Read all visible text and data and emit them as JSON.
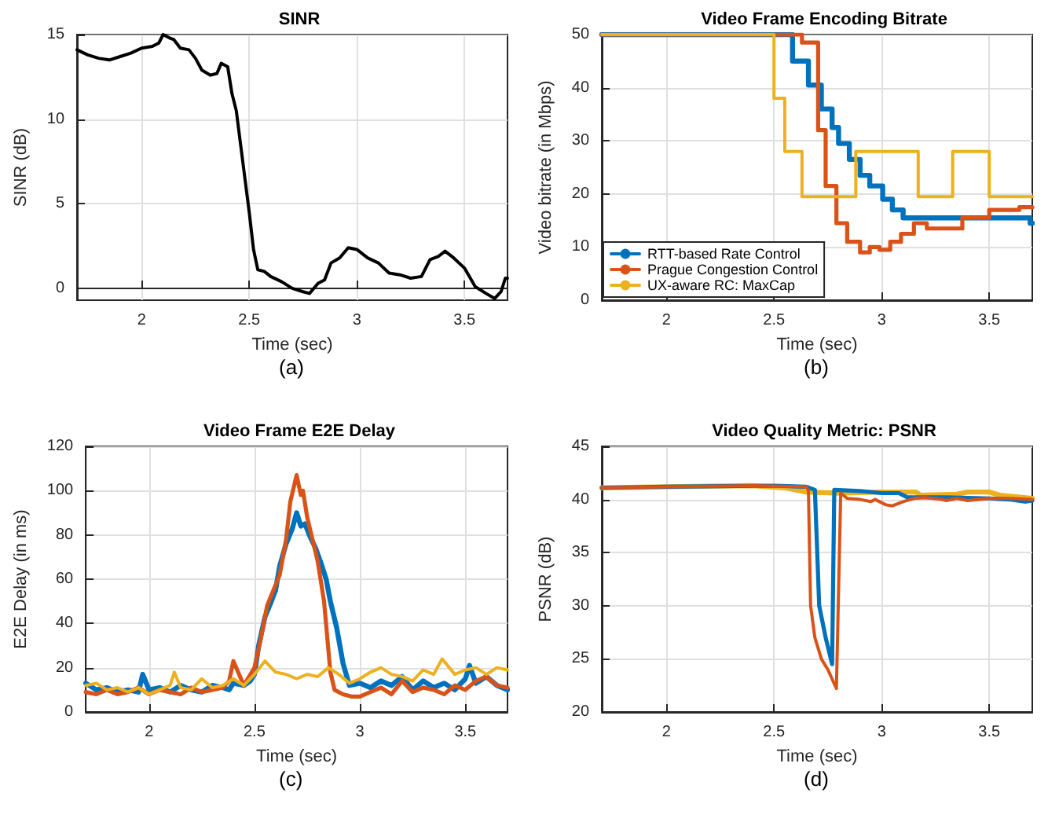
{
  "chart_data": [
    {
      "type": "line",
      "title": "SINR",
      "xlabel": "Time (sec)",
      "ylabel": "SINR (dB)",
      "annotations": [
        "(a)"
      ],
      "xlim": [
        1.7,
        3.7
      ],
      "xticks": [
        2,
        2.5,
        3,
        3.5
      ],
      "ylim": [
        -0.7,
        15
      ],
      "yticks": [
        0,
        5,
        10,
        15
      ],
      "grid": true,
      "legend": false,
      "series": [
        {
          "color": "#000000",
          "x": [
            1.7,
            1.75,
            1.8,
            1.85,
            1.9,
            1.95,
            2.0,
            2.05,
            2.08,
            2.1,
            2.13,
            2.15,
            2.18,
            2.22,
            2.25,
            2.28,
            2.32,
            2.35,
            2.37,
            2.4,
            2.42,
            2.44,
            2.46,
            2.48,
            2.5,
            2.52,
            2.54,
            2.57,
            2.6,
            2.65,
            2.7,
            2.75,
            2.78,
            2.82,
            2.85,
            2.88,
            2.92,
            2.96,
            3.0,
            3.05,
            3.1,
            3.15,
            3.2,
            3.25,
            3.3,
            3.34,
            3.38,
            3.41,
            3.45,
            3.5,
            3.55,
            3.6,
            3.64,
            3.67,
            3.69,
            3.7
          ],
          "values": [
            14.1,
            13.8,
            13.6,
            13.5,
            13.7,
            13.9,
            14.2,
            14.3,
            14.5,
            15.0,
            14.8,
            14.7,
            14.2,
            14.1,
            13.6,
            12.9,
            12.6,
            12.7,
            13.3,
            13.1,
            11.5,
            10.5,
            8.5,
            6.5,
            4.5,
            2.3,
            1.1,
            1.0,
            0.7,
            0.4,
            0.0,
            -0.2,
            -0.3,
            0.3,
            0.5,
            1.5,
            1.8,
            2.4,
            2.3,
            1.8,
            1.5,
            0.9,
            0.8,
            0.6,
            0.7,
            1.7,
            1.9,
            2.2,
            1.8,
            1.2,
            0.1,
            -0.3,
            -0.6,
            -0.2,
            0.6,
            0.6
          ]
        }
      ]
    },
    {
      "type": "step",
      "title": "Video Frame Encoding Bitrate",
      "xlabel": "Time (sec)",
      "ylabel": "Video bitrate (in Mbps)",
      "annotations": [
        "(b)"
      ],
      "xlim": [
        1.7,
        3.7
      ],
      "xticks": [
        2,
        2.5,
        3,
        3.5
      ],
      "ylim": [
        0,
        50
      ],
      "yticks": [
        0,
        10,
        20,
        30,
        40,
        50
      ],
      "grid": true,
      "legend": "bottom left",
      "series": [
        {
          "name": "RTT-based Rate Control",
          "color": "#0072bd",
          "x": [
            1.7,
            2.586,
            2.66,
            2.72,
            2.77,
            2.8,
            2.85,
            2.9,
            2.945,
            3.005,
            3.05,
            3.1,
            3.69,
            3.7
          ],
          "values": [
            50,
            45,
            40.5,
            36,
            32.5,
            29.5,
            26.5,
            23.5,
            21.5,
            19,
            17,
            15.5,
            14.5,
            14.5
          ]
        },
        {
          "name": "Prague Congestion Control",
          "color": "#d95319",
          "x": [
            1.7,
            2.63,
            2.705,
            2.74,
            2.79,
            2.84,
            2.9,
            2.945,
            2.99,
            3.04,
            3.09,
            3.15,
            3.21,
            3.375,
            3.5,
            3.64,
            3.7
          ],
          "values": [
            50,
            48.5,
            32,
            21.5,
            14.5,
            11,
            9,
            10,
            9.5,
            11,
            12.5,
            14.5,
            13.5,
            15.5,
            17,
            17.5,
            17.5
          ]
        },
        {
          "name": "UX-aware RC: MaxCap",
          "color": "#edb120",
          "x": [
            1.7,
            2.5,
            2.55,
            2.63,
            2.88,
            3.17,
            3.33,
            3.5,
            3.7
          ],
          "values": [
            50,
            38,
            28,
            19.5,
            28,
            19.5,
            28,
            19.5,
            19.5
          ]
        }
      ]
    },
    {
      "type": "line",
      "title": "Video Frame E2E Delay",
      "xlabel": "Time (sec)",
      "ylabel": "E2E Delay (in ms)",
      "annotations": [
        "(c)"
      ],
      "xlim": [
        1.7,
        3.7
      ],
      "xticks": [
        2,
        2.5,
        3,
        3.5
      ],
      "ylim": [
        0,
        120
      ],
      "yticks": [
        0,
        20,
        40,
        60,
        80,
        100,
        120
      ],
      "grid": true,
      "legend": false,
      "series": [
        {
          "color": "#0072bd",
          "x": [
            1.7,
            1.75,
            1.8,
            1.85,
            1.9,
            1.95,
            1.97,
            2.0,
            2.05,
            2.1,
            2.15,
            2.2,
            2.25,
            2.3,
            2.35,
            2.38,
            2.4,
            2.45,
            2.48,
            2.5,
            2.52,
            2.55,
            2.58,
            2.6,
            2.62,
            2.65,
            2.68,
            2.7,
            2.72,
            2.74,
            2.76,
            2.79,
            2.82,
            2.84,
            2.86,
            2.89,
            2.92,
            2.95,
            3.0,
            3.05,
            3.1,
            3.15,
            3.2,
            3.25,
            3.3,
            3.35,
            3.4,
            3.45,
            3.5,
            3.52,
            3.55,
            3.6,
            3.65,
            3.7
          ],
          "values": [
            13,
            10,
            11,
            9,
            10,
            9,
            17,
            10,
            11,
            9,
            12,
            10,
            9,
            12,
            11,
            10,
            13,
            12,
            14,
            17,
            30,
            43,
            50,
            55,
            66,
            76,
            83,
            90,
            84,
            85,
            80,
            74,
            66,
            60,
            50,
            38,
            22,
            12,
            13,
            11,
            14,
            12,
            16,
            10,
            14,
            11,
            13,
            10,
            15,
            21,
            13,
            16,
            12,
            10
          ]
        },
        {
          "color": "#d95319",
          "x": [
            1.7,
            1.75,
            1.8,
            1.85,
            1.9,
            1.95,
            2.0,
            2.05,
            2.1,
            2.15,
            2.2,
            2.25,
            2.3,
            2.35,
            2.38,
            2.4,
            2.45,
            2.5,
            2.53,
            2.56,
            2.59,
            2.62,
            2.65,
            2.67,
            2.69,
            2.7,
            2.72,
            2.73,
            2.75,
            2.77,
            2.8,
            2.83,
            2.86,
            2.88,
            2.92,
            2.96,
            3.0,
            3.05,
            3.1,
            3.15,
            3.2,
            3.25,
            3.3,
            3.35,
            3.4,
            3.45,
            3.5,
            3.55,
            3.6,
            3.65,
            3.7
          ],
          "values": [
            9,
            8,
            10,
            8,
            9,
            11,
            8,
            10,
            9,
            8,
            11,
            9,
            10,
            11,
            14,
            23,
            12,
            20,
            33,
            48,
            55,
            62,
            78,
            95,
            103,
            107,
            98,
            100,
            88,
            80,
            68,
            50,
            18,
            10,
            8,
            7,
            7,
            9,
            11,
            8,
            14,
            9,
            11,
            10,
            8,
            12,
            10,
            14,
            16,
            12,
            11
          ]
        },
        {
          "color": "#edb120",
          "x": [
            1.7,
            1.75,
            1.8,
            1.85,
            1.9,
            1.95,
            2.0,
            2.05,
            2.1,
            2.12,
            2.15,
            2.2,
            2.25,
            2.3,
            2.35,
            2.4,
            2.45,
            2.5,
            2.55,
            2.6,
            2.65,
            2.7,
            2.75,
            2.8,
            2.85,
            2.9,
            2.95,
            3.0,
            3.05,
            3.1,
            3.15,
            3.2,
            3.25,
            3.3,
            3.35,
            3.39,
            3.45,
            3.5,
            3.55,
            3.6,
            3.65,
            3.7
          ],
          "values": [
            12,
            13,
            10,
            11,
            9,
            11,
            8,
            10,
            12,
            18,
            11,
            10,
            15,
            11,
            12,
            15,
            12,
            17,
            23,
            18,
            17,
            15,
            17,
            16,
            20,
            17,
            13,
            15,
            18,
            20,
            17,
            16,
            14,
            19,
            17,
            24,
            17,
            19,
            20,
            17,
            20,
            19
          ]
        }
      ]
    },
    {
      "type": "line",
      "title": "Video Quality Metric: PSNR",
      "xlabel": "Time (sec)",
      "ylabel": "PSNR (dB)",
      "annotations": [
        "(d)"
      ],
      "xlim": [
        1.7,
        3.7
      ],
      "xticks": [
        2,
        2.5,
        3,
        3.5
      ],
      "ylim": [
        20,
        45
      ],
      "yticks": [
        20,
        25,
        30,
        35,
        40,
        45
      ],
      "grid": true,
      "legend": false,
      "series": [
        {
          "color": "#edb120",
          "x": [
            1.7,
            2.0,
            2.4,
            2.55,
            2.65,
            2.8,
            3.0,
            3.16,
            3.18,
            3.35,
            3.4,
            3.5,
            3.55,
            3.7
          ],
          "values": [
            41.1,
            41.2,
            41.3,
            41.1,
            40.7,
            40.6,
            40.7,
            40.7,
            40.4,
            40.5,
            40.7,
            40.7,
            40.4,
            40.1
          ]
        },
        {
          "color": "#0072bd",
          "x": [
            1.7,
            2.0,
            2.5,
            2.65,
            2.69,
            2.71,
            2.74,
            2.77,
            2.78,
            2.9,
            3.0,
            3.08,
            3.12,
            3.3,
            3.5,
            3.6,
            3.67,
            3.7
          ],
          "values": [
            41.1,
            41.2,
            41.3,
            41.2,
            40.9,
            30,
            27,
            24.5,
            40.9,
            40.8,
            40.6,
            40.6,
            40.2,
            40.2,
            40.1,
            40.0,
            39.8,
            39.9
          ]
        },
        {
          "color": "#d95319",
          "x": [
            1.7,
            2.0,
            2.4,
            2.65,
            2.66,
            2.67,
            2.69,
            2.72,
            2.75,
            2.79,
            2.81,
            2.84,
            2.9,
            2.95,
            2.97,
            3.02,
            3.05,
            3.1,
            3.15,
            3.2,
            3.28,
            3.3,
            3.35,
            3.4,
            3.5,
            3.6,
            3.7
          ],
          "values": [
            41.1,
            41.2,
            41.3,
            41.2,
            40.8,
            30,
            27,
            25,
            24,
            22.2,
            40.6,
            40.1,
            40.0,
            39.8,
            40.0,
            39.5,
            39.4,
            39.8,
            40.1,
            40.2,
            40.0,
            39.9,
            40.1,
            39.9,
            40.1,
            40.1,
            40.0
          ]
        }
      ]
    }
  ]
}
